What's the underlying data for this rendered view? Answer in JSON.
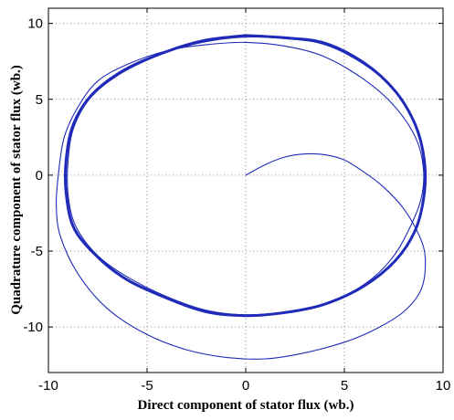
{
  "chart_data": {
    "type": "line",
    "title": "",
    "xlabel": "Direct component of stator flux (wb.)",
    "ylabel": "Quadrature component of stator flux (wb.)",
    "xlim": [
      -10,
      10
    ],
    "ylim": [
      -13,
      11
    ],
    "xticks": [
      -10,
      -5,
      0,
      5,
      10
    ],
    "yticks": [
      10,
      5,
      0,
      -5,
      -10
    ],
    "grid": true,
    "line_color": "#1f2bb8",
    "series": [
      {
        "style": "thin",
        "points": [
          [
            0.0,
            0.0
          ],
          [
            1.0,
            0.7
          ],
          [
            2.0,
            1.2
          ],
          [
            3.0,
            1.4
          ],
          [
            4.0,
            1.35
          ],
          [
            5.0,
            1.0
          ],
          [
            6.0,
            0.2
          ],
          [
            7.0,
            -0.8
          ],
          [
            8.0,
            -2.2
          ],
          [
            8.8,
            -4.0
          ],
          [
            9.1,
            -5.5
          ],
          [
            8.9,
            -7.5
          ],
          [
            8.0,
            -9.0
          ],
          [
            6.5,
            -10.2
          ],
          [
            5.0,
            -11.0
          ],
          [
            3.0,
            -11.7
          ],
          [
            1.0,
            -12.1
          ],
          [
            -1.0,
            -12.0
          ],
          [
            -3.0,
            -11.5
          ],
          [
            -5.0,
            -10.5
          ],
          [
            -7.0,
            -8.8
          ],
          [
            -8.5,
            -6.5
          ],
          [
            -9.4,
            -4.0
          ],
          [
            -9.6,
            -2.0
          ],
          [
            -9.5,
            0.0
          ],
          [
            -9.2,
            2.5
          ],
          [
            -8.5,
            4.5
          ],
          [
            -7.5,
            6.2
          ],
          [
            -6.0,
            7.3
          ],
          [
            -4.0,
            8.2
          ],
          [
            -2.0,
            8.6
          ],
          [
            0.0,
            8.75
          ],
          [
            2.0,
            8.5
          ],
          [
            4.0,
            7.8
          ],
          [
            6.0,
            6.3
          ],
          [
            7.5,
            4.6
          ],
          [
            8.6,
            2.5
          ],
          [
            9.0,
            0.5
          ],
          [
            8.9,
            -1.5
          ],
          [
            8.3,
            -3.5
          ],
          [
            7.4,
            -5.5
          ],
          [
            6.0,
            -7.2
          ],
          [
            4.0,
            -8.5
          ],
          [
            2.0,
            -9.0
          ],
          [
            0.0,
            -9.2
          ],
          [
            -2.0,
            -8.9
          ],
          [
            -4.0,
            -8.0
          ],
          [
            -6.0,
            -6.7
          ],
          [
            -7.5,
            -5.3
          ],
          [
            -8.6,
            -3.4
          ],
          [
            -9.0,
            -1.3
          ],
          [
            -9.0,
            1.0
          ],
          [
            -8.7,
            3.2
          ],
          [
            -7.8,
            5.2
          ],
          [
            -6.2,
            6.8
          ],
          [
            -4.0,
            8.1
          ],
          [
            -2.0,
            8.8
          ],
          [
            0.0,
            9.1
          ],
          [
            2.0,
            9.0
          ],
          [
            4.0,
            8.6
          ],
          [
            6.0,
            7.3
          ],
          [
            7.6,
            5.5
          ],
          [
            8.6,
            3.2
          ],
          [
            9.0,
            1.0
          ],
          [
            9.0,
            -1.0
          ]
        ]
      },
      {
        "style": "thick",
        "points": [
          [
            0.0,
            9.2
          ],
          [
            2.0,
            9.05
          ],
          [
            4.0,
            8.7
          ],
          [
            6.0,
            7.4
          ],
          [
            7.6,
            5.5
          ],
          [
            8.6,
            3.3
          ],
          [
            9.05,
            1.0
          ],
          [
            9.05,
            -1.2
          ],
          [
            8.6,
            -3.6
          ],
          [
            7.6,
            -5.6
          ],
          [
            6.0,
            -7.3
          ],
          [
            4.0,
            -8.5
          ],
          [
            2.0,
            -9.05
          ],
          [
            0.0,
            -9.25
          ],
          [
            -2.0,
            -9.0
          ],
          [
            -4.0,
            -8.1
          ],
          [
            -6.0,
            -6.9
          ],
          [
            -7.5,
            -5.4
          ],
          [
            -8.7,
            -3.5
          ],
          [
            -9.1,
            -1.2
          ],
          [
            -9.1,
            1.0
          ],
          [
            -8.75,
            3.3
          ],
          [
            -7.8,
            5.3
          ],
          [
            -6.2,
            6.9
          ],
          [
            -4.0,
            8.15
          ],
          [
            -2.0,
            8.9
          ],
          [
            0.0,
            9.2
          ]
        ]
      }
    ]
  }
}
